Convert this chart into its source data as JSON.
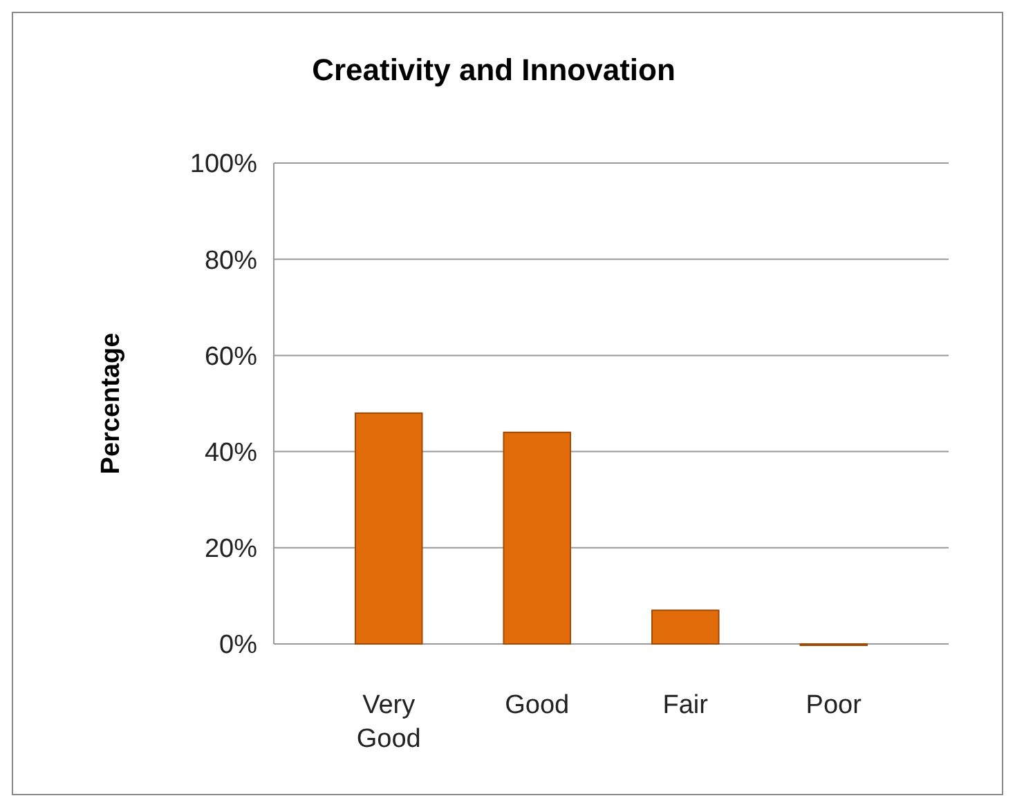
{
  "chart_data": {
    "type": "bar",
    "title": "Creativity and Innovation",
    "ylabel": "Percentage",
    "categories": [
      "Very\nGood",
      "Good",
      "Fair",
      "Poor"
    ],
    "values": [
      48,
      44,
      7,
      0
    ],
    "color": "#e36c0a",
    "ylim": [
      0,
      100
    ],
    "yticks": [
      {
        "value": 0,
        "label": "0%"
      },
      {
        "value": 20,
        "label": "20%"
      },
      {
        "value": 40,
        "label": "40%"
      },
      {
        "value": 60,
        "label": "60%"
      },
      {
        "value": 80,
        "label": "80%"
      },
      {
        "value": 100,
        "label": "100%"
      }
    ],
    "grid": "y"
  }
}
